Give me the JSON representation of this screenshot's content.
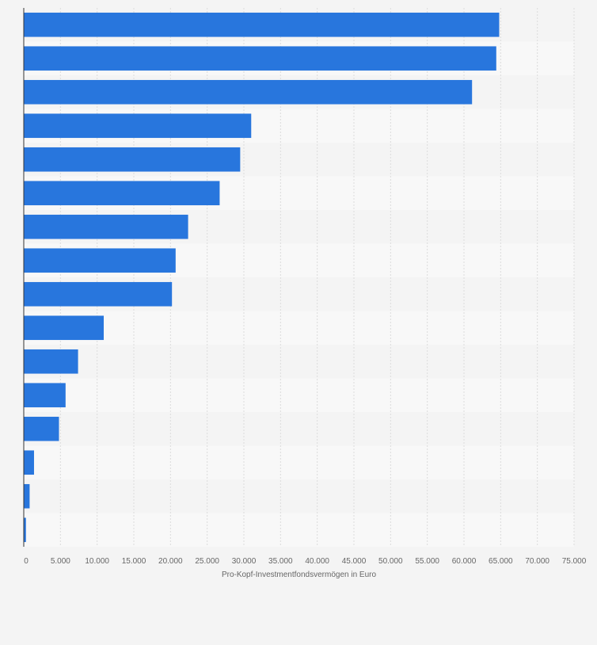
{
  "chart_data": {
    "type": "bar",
    "orientation": "horizontal",
    "title": "",
    "xlabel": "Pro-Kopf-Investmentfondsvermögen in Euro",
    "ylabel": "",
    "xlim": [
      0,
      75000
    ],
    "ticks": [
      0,
      5000,
      10000,
      15000,
      20000,
      25000,
      30000,
      35000,
      40000,
      45000,
      50000,
      55000,
      60000,
      65000,
      70000,
      75000
    ],
    "tick_labels": [
      "0",
      "5.000",
      "10.000",
      "15.000",
      "20.000",
      "25.000",
      "30.000",
      "35.000",
      "40.000",
      "45.000",
      "50.000",
      "55.000",
      "60.000",
      "65.000",
      "70.000",
      "75.000"
    ],
    "categories": [
      "",
      "",
      "",
      "",
      "",
      "",
      "",
      "",
      "",
      "",
      "",
      "",
      "",
      "",
      "",
      ""
    ],
    "values": [
      64800,
      64400,
      61100,
      31000,
      29500,
      26700,
      22400,
      20700,
      20200,
      10900,
      7400,
      5700,
      4800,
      1400,
      800,
      300
    ],
    "bar_color": "#2876dd",
    "grid": true,
    "legend": "none"
  }
}
